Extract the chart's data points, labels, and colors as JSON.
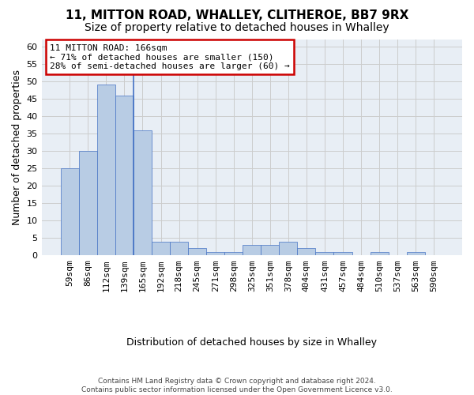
{
  "title_line1": "11, MITTON ROAD, WHALLEY, CLITHEROE, BB7 9RX",
  "title_line2": "Size of property relative to detached houses in Whalley",
  "xlabel": "Distribution of detached houses by size in Whalley",
  "ylabel": "Number of detached properties",
  "categories": [
    "59sqm",
    "86sqm",
    "112sqm",
    "139sqm",
    "165sqm",
    "192sqm",
    "218sqm",
    "245sqm",
    "271sqm",
    "298sqm",
    "325sqm",
    "351sqm",
    "378sqm",
    "404sqm",
    "431sqm",
    "457sqm",
    "484sqm",
    "510sqm",
    "537sqm",
    "563sqm",
    "590sqm"
  ],
  "values": [
    25,
    30,
    49,
    46,
    36,
    4,
    4,
    2,
    1,
    1,
    3,
    3,
    4,
    2,
    1,
    1,
    0,
    1,
    0,
    1,
    0
  ],
  "bar_color": "#b8cce4",
  "bar_edge_color": "#4472c4",
  "annotation_text": "11 MITTON ROAD: 166sqm\n← 71% of detached houses are smaller (150)\n28% of semi-detached houses are larger (60) →",
  "annotation_box_color": "#ffffff",
  "annotation_box_edge_color": "#cc0000",
  "property_vline_x": 3.5,
  "ylim": [
    0,
    62
  ],
  "yticks": [
    0,
    5,
    10,
    15,
    20,
    25,
    30,
    35,
    40,
    45,
    50,
    55,
    60
  ],
  "background_color": "#ffffff",
  "plot_bg_color": "#e8eef5",
  "grid_color": "#cccccc",
  "footnote": "Contains HM Land Registry data © Crown copyright and database right 2024.\nContains public sector information licensed under the Open Government Licence v3.0.",
  "title_fontsize": 11,
  "subtitle_fontsize": 10,
  "axis_label_fontsize": 9,
  "tick_fontsize": 8,
  "annot_fontsize": 8
}
